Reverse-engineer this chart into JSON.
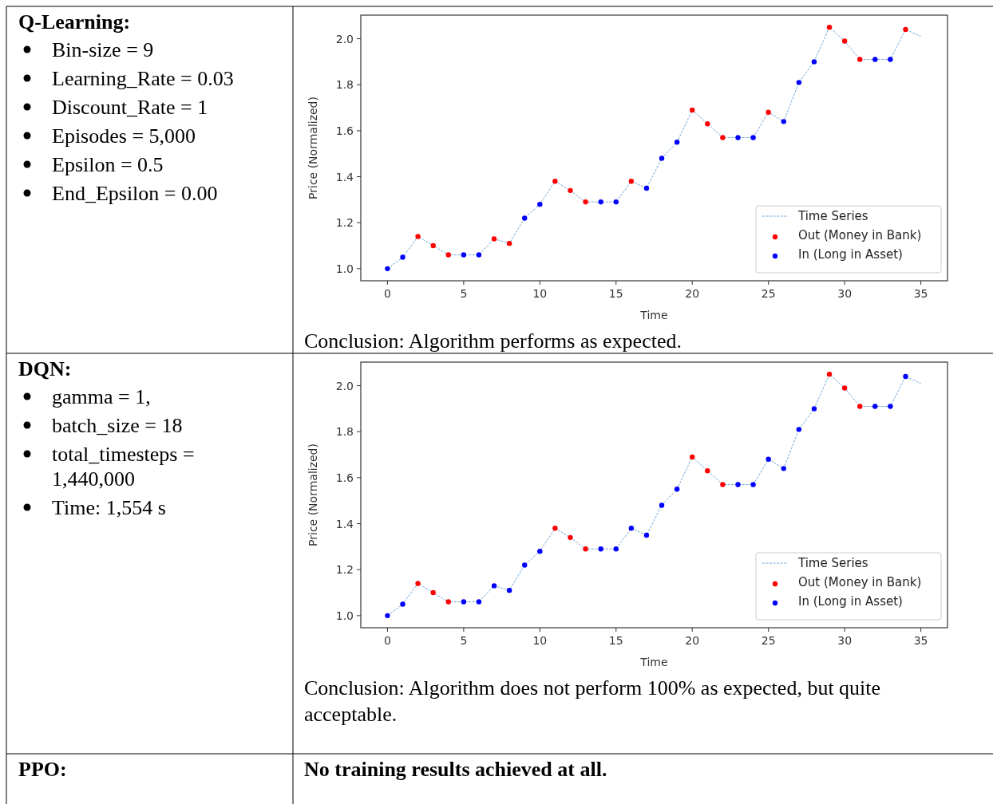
{
  "chart_data": [
    {
      "type": "other",
      "title": "Q-Learning:",
      "annotations": [
        "Bin-size = 9",
        "Learning_Rate = 0.03",
        "Discount_Rate = 1",
        "Episodes = 5,000",
        "Epsilon = 0.5",
        "End_Epsilon = 0.00"
      ]
    },
    {
      "type": "line",
      "x": [
        0,
        1,
        2,
        3,
        4,
        5,
        6,
        7,
        8,
        9,
        10,
        11,
        12,
        13,
        14,
        15,
        16,
        17,
        18,
        19,
        20,
        21,
        22,
        23,
        24,
        25,
        26,
        27,
        28,
        29,
        30,
        31,
        32,
        33,
        34,
        35
      ],
      "xlabel": "Time",
      "ylabel": "Price (Normalized)",
      "xlim": [
        -1.75,
        36.75
      ],
      "ylim": [
        0.9475,
        2.1025
      ],
      "xticks": [
        0,
        5,
        10,
        15,
        20,
        25,
        30,
        35
      ],
      "yticks": [
        {
          "value": 1,
          "label": "1.0"
        },
        {
          "value": 1.2,
          "label": "1.2"
        },
        {
          "value": 1.4,
          "label": "1.4"
        },
        {
          "value": 1.6,
          "label": "1.6"
        },
        {
          "value": 1.8,
          "label": "1.8"
        },
        {
          "value": 2,
          "label": "2.0"
        }
      ],
      "legend": "bottom right",
      "grid": false,
      "annotations": [
        "Conclusion: Algorithm performs as expected."
      ],
      "series": [
        {
          "name": "Time Series",
          "type": "line",
          "color": "#6fa8dc",
          "line_style": "dashed",
          "values": [
            1.0,
            1.05,
            1.14,
            1.1,
            1.06,
            1.06,
            1.06,
            1.13,
            1.11,
            1.22,
            1.28,
            1.38,
            1.34,
            1.29,
            1.29,
            1.29,
            1.38,
            1.35,
            1.48,
            1.55,
            1.69,
            1.63,
            1.57,
            1.57,
            1.57,
            1.68,
            1.64,
            1.81,
            1.9,
            2.05,
            1.99,
            1.91,
            1.91,
            1.91,
            2.04,
            2.01
          ]
        },
        {
          "name": "Out (Money in Bank)",
          "type": "scatter",
          "marker": "circle",
          "color": "#ff0000",
          "x": [
            2,
            3,
            4,
            7,
            8,
            11,
            12,
            13,
            16,
            20,
            21,
            22,
            25,
            29,
            30,
            31,
            34
          ],
          "values": [
            1.14,
            1.1,
            1.06,
            1.13,
            1.11,
            1.38,
            1.34,
            1.29,
            1.38,
            1.69,
            1.63,
            1.57,
            1.68,
            2.05,
            1.99,
            1.91,
            2.04
          ]
        },
        {
          "name": "In (Long in Asset)",
          "type": "scatter",
          "marker": "circle",
          "color": "#0000ff",
          "x": [
            0,
            1,
            5,
            6,
            9,
            10,
            14,
            15,
            17,
            18,
            19,
            23,
            24,
            26,
            27,
            28,
            32,
            33
          ],
          "values": [
            1.0,
            1.05,
            1.06,
            1.06,
            1.22,
            1.28,
            1.29,
            1.29,
            1.35,
            1.48,
            1.55,
            1.57,
            1.57,
            1.64,
            1.81,
            1.9,
            1.91,
            1.91
          ]
        }
      ]
    },
    {
      "type": "other",
      "title": "DQN:",
      "annotations": [
        "gamma = 1,",
        "batch_size = 18",
        "total_timesteps = 1,440,000",
        "Time: 1,554 s"
      ]
    },
    {
      "type": "line",
      "x": [
        0,
        1,
        2,
        3,
        4,
        5,
        6,
        7,
        8,
        9,
        10,
        11,
        12,
        13,
        14,
        15,
        16,
        17,
        18,
        19,
        20,
        21,
        22,
        23,
        24,
        25,
        26,
        27,
        28,
        29,
        30,
        31,
        32,
        33,
        34,
        35
      ],
      "xlabel": "Time",
      "ylabel": "Price (Normalized)",
      "xlim": [
        -1.75,
        36.75
      ],
      "ylim": [
        0.9475,
        2.1025
      ],
      "xticks": [
        0,
        5,
        10,
        15,
        20,
        25,
        30,
        35
      ],
      "yticks": [
        {
          "value": 1,
          "label": "1.0"
        },
        {
          "value": 1.2,
          "label": "1.2"
        },
        {
          "value": 1.4,
          "label": "1.4"
        },
        {
          "value": 1.6,
          "label": "1.6"
        },
        {
          "value": 1.8,
          "label": "1.8"
        },
        {
          "value": 2,
          "label": "2.0"
        }
      ],
      "legend": "bottom right",
      "grid": false,
      "annotations": [
        "Conclusion: Algorithm does not perform 100% as expected, but quite acceptable."
      ],
      "series": [
        {
          "name": "Time Series",
          "type": "line",
          "color": "#6fa8dc",
          "line_style": "dashed",
          "values": [
            1.0,
            1.05,
            1.14,
            1.1,
            1.06,
            1.06,
            1.06,
            1.13,
            1.11,
            1.22,
            1.28,
            1.38,
            1.34,
            1.29,
            1.29,
            1.29,
            1.38,
            1.35,
            1.48,
            1.55,
            1.69,
            1.63,
            1.57,
            1.57,
            1.57,
            1.68,
            1.64,
            1.81,
            1.9,
            2.05,
            1.99,
            1.91,
            1.91,
            1.91,
            2.04,
            2.01
          ]
        },
        {
          "name": "Out (Money in Bank)",
          "type": "scatter",
          "marker": "circle",
          "color": "#ff0000",
          "x": [
            2,
            3,
            4,
            11,
            12,
            13,
            20,
            21,
            22,
            29,
            30,
            31
          ],
          "values": [
            1.14,
            1.1,
            1.06,
            1.38,
            1.34,
            1.29,
            1.69,
            1.63,
            1.57,
            2.05,
            1.99,
            1.91
          ]
        },
        {
          "name": "In (Long in Asset)",
          "type": "scatter",
          "marker": "circle",
          "color": "#0000ff",
          "x": [
            0,
            1,
            5,
            6,
            7,
            8,
            9,
            10,
            14,
            15,
            16,
            17,
            18,
            19,
            23,
            24,
            25,
            26,
            27,
            28,
            32,
            33,
            34
          ],
          "values": [
            1.0,
            1.05,
            1.06,
            1.06,
            1.13,
            1.11,
            1.22,
            1.28,
            1.29,
            1.29,
            1.38,
            1.35,
            1.48,
            1.55,
            1.57,
            1.57,
            1.68,
            1.64,
            1.81,
            1.9,
            1.91,
            1.91,
            2.04
          ]
        }
      ]
    },
    {
      "type": "other",
      "title": "PPO:",
      "subtitle": "No training results achieved at all."
    }
  ]
}
